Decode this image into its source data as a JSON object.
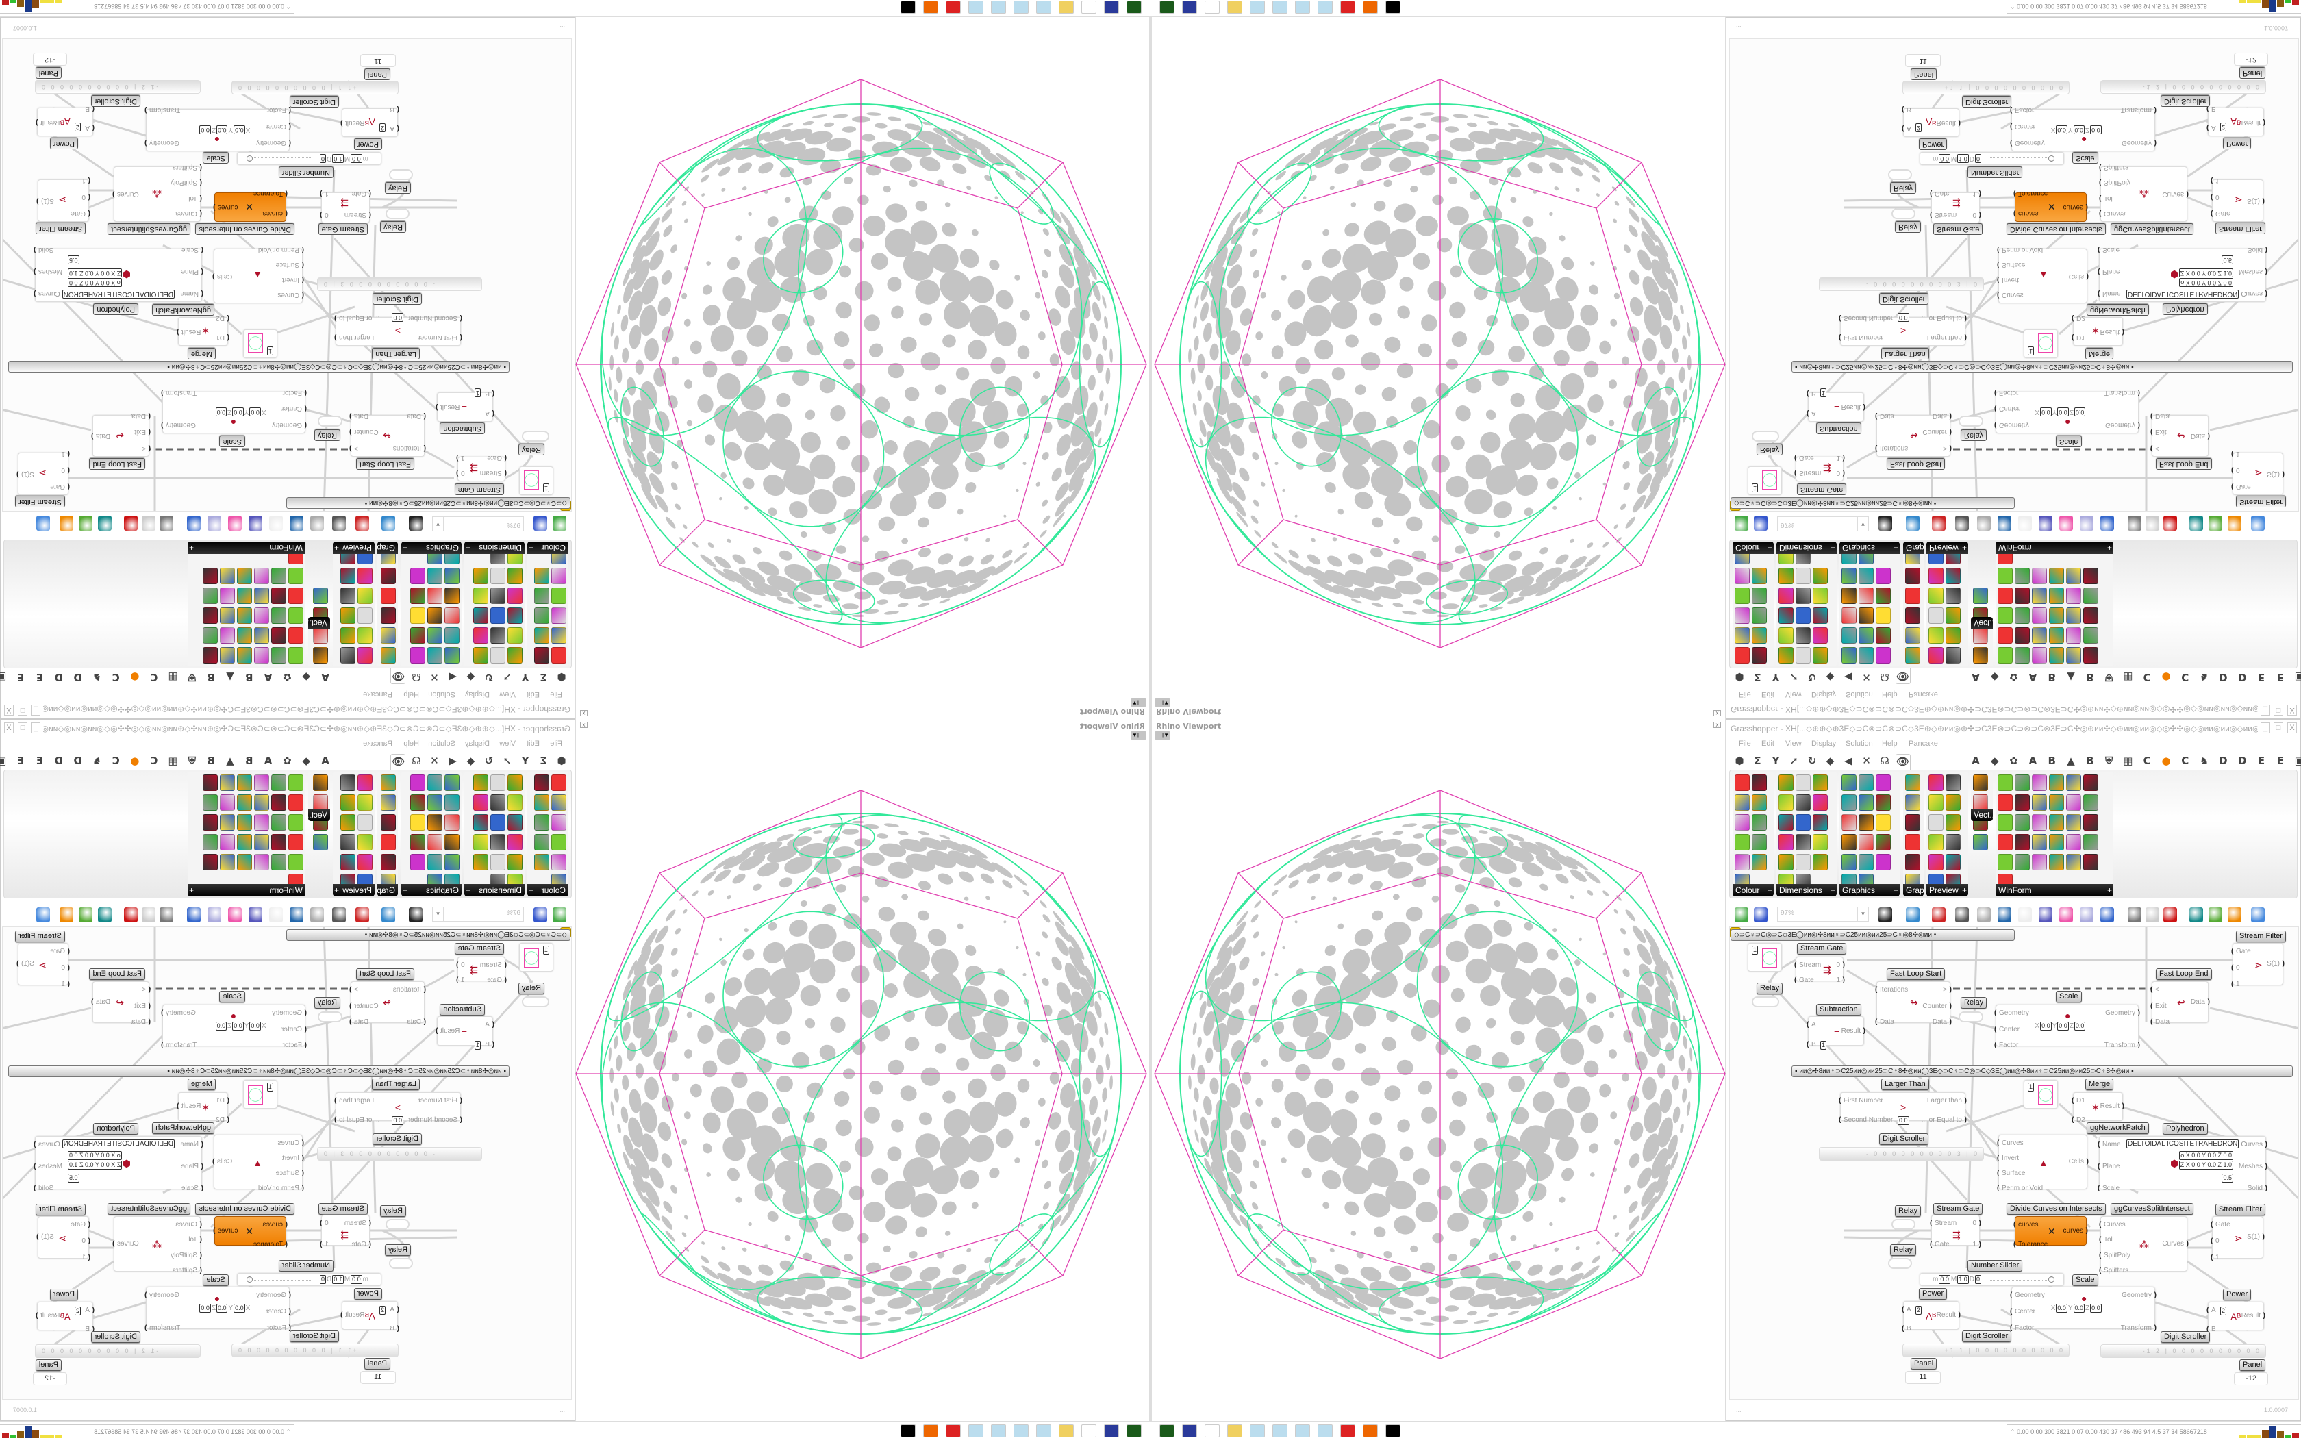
{
  "viewport": {
    "title": "Rhino Viewport",
    "dropdown_icon": "chevron-down-icon",
    "close_icon": "close-icon",
    "colors": {
      "outer_polyhedron": "#e040b0",
      "circle_packing": "#33e89a",
      "holes": "#c4c4c4"
    }
  },
  "grasshopper": {
    "title": "Grasshopper - XH[...◇⊕⊕◇⊕3E◇⊃C⊗⊃C⊗⊃C◇3E⊕◇⊕ии◎⊕✣⊃C3E⊗⊃C⊃⊗⊃C⊗3E⊃C✣◎⊕ии✣◇⊕ии◎ии◎◇◎✣✣◎◇◎ии◎ии◎◇ии◎⊕✣⊃C3E⊗⊃C⊃⊗⊃C...",
    "window_buttons": [
      "_",
      "□",
      "X"
    ],
    "menu": [
      "File",
      "Edit",
      "View",
      "Display",
      "Solution",
      "Help",
      "Pancake"
    ],
    "tabs": [
      "⬢",
      "Σ",
      "Y",
      "➚",
      "↻",
      "◆",
      "◀",
      "✕",
      "☊",
      "👁"
    ],
    "tabs_right": [
      "A",
      "◆",
      "✿",
      "A",
      "B",
      "▲",
      "B",
      "⛨",
      "▦",
      "C",
      "●",
      "C",
      "♞",
      "D",
      "D",
      "E",
      "E",
      "▣"
    ],
    "accent_orange": "#f07f00",
    "palette_groups": [
      {
        "label": "Colour",
        "icons": [
          "colour-wheel",
          "gradient",
          "colour-cube",
          "hue-triangle",
          "rgb-cube",
          "hsl",
          "red-sphere",
          "hsv",
          "red-sphere-2",
          "prism",
          "gradient-swatch"
        ]
      },
      {
        "label": "Dimensions",
        "icons": [
          "tag-delete",
          "dimension-linear",
          "dimension-angle",
          "tag",
          "leader",
          "box-dimension",
          "magenta-fill",
          "ordinate",
          "arrows",
          "grid",
          "angle",
          "dimension-align",
          "curve-dim",
          "point-dim",
          "radius",
          "line-dim",
          "warning-triangle"
        ]
      },
      {
        "label": "Graphics",
        "icons": [
          "disc",
          "text-t",
          "eye",
          "dots",
          "text-t2",
          "frame",
          "blur",
          "list",
          "asterisk",
          "ring",
          "link",
          "save-image",
          "sphere",
          "dashed-circle",
          "save-frame",
          "shaded-sphere",
          "photo"
        ]
      },
      {
        "label": "Grap..",
        "icons": [
          "bar-graph",
          "legend",
          "pie",
          "line-graph",
          "layers",
          "area-graph"
        ]
      },
      {
        "label": "Preview",
        "icons": [
          "material",
          "camera",
          "render",
          "landscape",
          "blobs",
          "heart-mesh",
          "red-blobs",
          "heart",
          "gradient-square",
          "hearts",
          "sl-text",
          "tree-image"
        ]
      },
      {
        "label": "Vect..",
        "icons": [
          "sort",
          "path",
          "vector-field",
          "vector-arrows"
        ]
      },
      {
        "label": "WinForm",
        "icons": [
          "label-a",
          "checklist",
          "text-lines",
          "grid-table",
          "pacman",
          "layout",
          "hatched",
          "slider-strip",
          "range",
          "pie-chart",
          "person",
          "check",
          "text-list",
          "tree-picture",
          "split",
          "text-plus",
          "list-view",
          "button-strip",
          "package",
          "numbered-list",
          "green-panel",
          "ok-button",
          "toggle",
          "progress",
          "bar-chart",
          "next",
          "calendar",
          "vertical-slider",
          "label-tag",
          "chart",
          "network"
        ]
      }
    ],
    "toolbar": {
      "zoom": "97%",
      "zoom_dropdown": "▼",
      "icons": [
        "new-file",
        "save",
        "zoom-extents",
        "preview-eye",
        "sketch-pen",
        "cluster",
        "email",
        "gha-export",
        "canvas-snapshot",
        "search",
        "package-help",
        "bulb",
        "wires",
        "bake-gray",
        "bake-hollow",
        "bake-red",
        "bake-teal",
        "bake-green",
        "bake-orange",
        "bake-blue"
      ]
    },
    "group_bars": [
      "◇⊃C♀⊃C◎⊃C◇3E◯ии◎✣8ии♀⊃C25ии◎ии25⊃C♀◎8✣◎ии       ▪",
      "▪        ии◎✣8ии♀⊃C25ии◎ии25⊃C♀8✣◎ии◯3E◇⊃C♀⊃C◎⊃C◇3E◯ии◎✣8ии♀⊃C25ии◎ии25⊃C♀8✣◎ии        ▪"
    ],
    "components": [
      {
        "label": "Stream Gate",
        "inputs": [
          "Stream",
          "Gate"
        ],
        "outputs": [
          "0",
          "1"
        ],
        "icon": "⇶"
      },
      {
        "label": "Relay"
      },
      {
        "label": "Fast Loop Start",
        "inputs": [
          "Iterations",
          "Data"
        ],
        "outputs": [
          ">",
          "Counter",
          "Data"
        ],
        "icon": "↬"
      },
      {
        "label": "Fast Loop End",
        "inputs": [
          "<",
          "Exit",
          "Data"
        ],
        "outputs": [
          "Data"
        ],
        "icon": "↩"
      },
      {
        "label": "Stream Filter",
        "inputs": [
          "Gate",
          "0",
          "1"
        ],
        "outputs": [
          "S(1)"
        ],
        "icon": "⋗"
      },
      {
        "label": "Relay"
      },
      {
        "label": "Scale",
        "inputs": [
          "Geometry",
          "Center",
          "Factor"
        ],
        "outputs": [
          "Geometry",
          "Transform"
        ],
        "params": [
          "X",
          "0.0",
          "Y",
          "0.0",
          "Z",
          "0.0"
        ],
        "icon": "●"
      },
      {
        "label": "Subtraction",
        "inputs": [
          "A",
          "B"
        ],
        "outputs": [
          "Result"
        ],
        "params": [
          "1"
        ],
        "icon": "−"
      },
      {
        "label": "Larger Than",
        "inputs": [
          "First Number",
          "Second Number"
        ],
        "outputs": [
          "Larger than",
          "... or Equal to"
        ],
        "params": [
          "0.0"
        ],
        "icon": ">"
      },
      {
        "label": "Merge",
        "inputs": [
          "D1",
          "D2"
        ],
        "outputs": [
          "Result"
        ],
        "icon": "✶"
      },
      {
        "label": "ggNetworkPatch",
        "inputs": [
          "Curves",
          "Invert",
          "Surface",
          "Perim or Void"
        ],
        "outputs": [
          "Cells"
        ],
        "icon": "▲"
      },
      {
        "label": "Polyhedron",
        "inputs": [
          "Name",
          "Plane",
          "Scale"
        ],
        "outputs": [
          "Curves",
          "Meshes",
          "Solid"
        ],
        "params": [
          "DELTOIDAL ICOSITETRAHEDRON",
          "o X 0.0 Y 0.0 Z 0.0",
          "Z X 0.0 Y 0.0 Z 1.0",
          "0.5"
        ],
        "icon": "⬢"
      },
      {
        "label": "Digit Scroller"
      },
      {
        "label": "Relay"
      },
      {
        "label": "Stream Gate",
        "inputs": [
          "Stream",
          "Gate"
        ],
        "outputs": [
          "0",
          "1"
        ],
        "icon": "⇶"
      },
      {
        "label": "Divide Curves on Intersects",
        "inputs": [
          "curves",
          "Tolerance"
        ],
        "outputs": [
          "curves"
        ],
        "icon": "✕"
      },
      {
        "label": "ggCurvesSplitIntersect",
        "inputs": [
          "Curves",
          "Tol",
          "SplitPoly",
          "Splitters"
        ],
        "outputs": [
          "Curves"
        ],
        "icon": "⁂"
      },
      {
        "label": "Stream Filter",
        "inputs": [
          "Gate",
          "0",
          "1"
        ],
        "outputs": [
          "S(1)"
        ],
        "icon": "⋗"
      },
      {
        "label": "Relay"
      },
      {
        "label": "Number Slider"
      },
      {
        "label": "Scale",
        "inputs": [
          "Geometry",
          "Center",
          "Factor"
        ],
        "outputs": [
          "Geometry",
          "Transform"
        ],
        "params": [
          "X",
          "0.0",
          "Y",
          "0.0",
          "Z",
          "0.0"
        ],
        "icon": "●"
      },
      {
        "label": "Power",
        "inputs": [
          "A",
          "B"
        ],
        "outputs": [
          "Result"
        ],
        "params": [
          "2"
        ],
        "icon": "Aᴮ"
      },
      {
        "label": "Power",
        "inputs": [
          "A",
          "B"
        ],
        "outputs": [
          "Result"
        ],
        "params": [
          "2"
        ],
        "icon": "Aᴮ"
      },
      {
        "label": "Digit Scroller"
      },
      {
        "label": "Digit Scroller"
      },
      {
        "label": "Panel"
      },
      {
        "label": "Panel"
      }
    ],
    "panel_circle_value": "1",
    "scrollers": [
      "· 0 0 0 0 0 0 0 0 0 3 | 0",
      "+1 1 | 0 0 0 0 0 0 0 0 0 0",
      "-1 2 | 0 0 0 0 0 0 0 0 0 0"
    ],
    "slider": {
      "min_label": "m",
      "min": "0.0",
      "max_label": "M",
      "max": "1.0",
      "dec_label": "D",
      "decimals": "0",
      "value": "1",
      "fraction": 1.0
    },
    "panels": [
      "11",
      "-12"
    ],
    "status_left": "...",
    "status_right": "1.0.0007"
  },
  "taskbar": {
    "icons": [
      "rhino-app",
      "save-disk",
      "blank",
      "folder",
      "notepad",
      "notepad",
      "notepad",
      "notepad",
      "target-app",
      "firefox",
      "inkscape"
    ],
    "stats": "0.00 0.00 300 3821 0.07 0.00 430  37  486 493  94  4.5  37  34 58667218",
    "bar_colors": [
      "#f0e040",
      "#f0e040",
      "#f0e040",
      "#8a4a10",
      "#1a3a8a",
      "#8a5a10",
      "#30c030",
      "#c02020"
    ],
    "bar_levels": [
      0.1,
      0.1,
      0.1,
      0.6,
      1.0,
      0.5,
      0.1,
      0.3
    ]
  }
}
